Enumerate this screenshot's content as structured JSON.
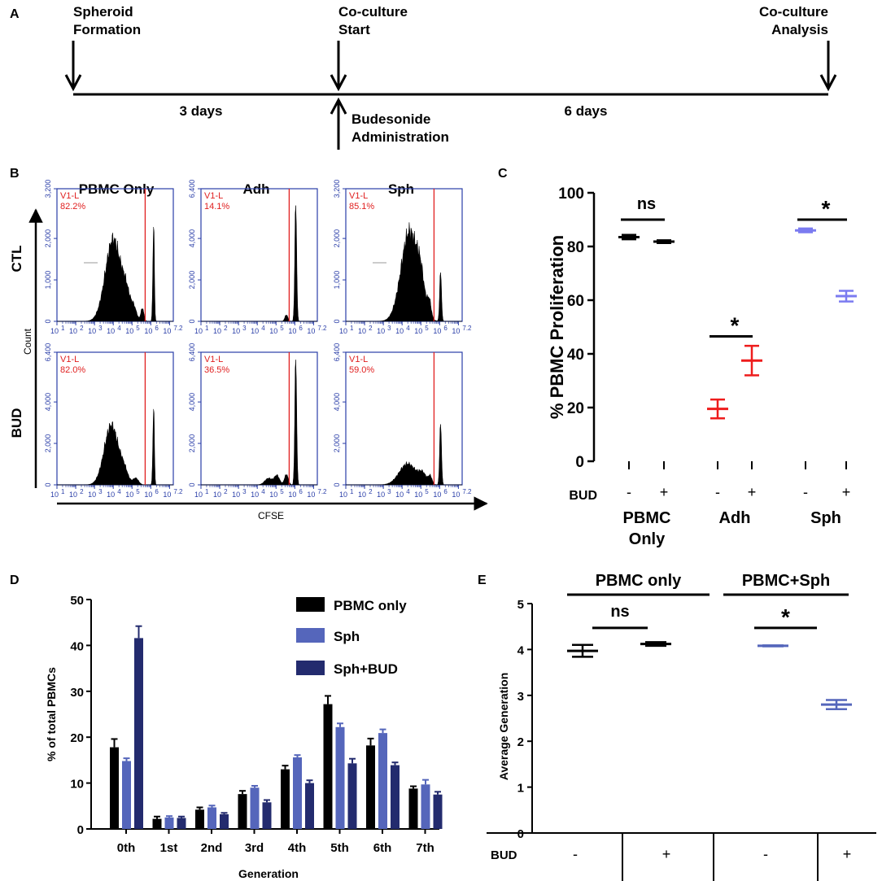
{
  "panel_labels": {
    "a": "A",
    "b": "B",
    "c": "C",
    "d": "D",
    "e": "E"
  },
  "timeline": {
    "events": [
      "Spheroid\nFormation",
      "Co-culture\nStart",
      "Co-culture\nAnalysis"
    ],
    "treatment": "Budesonide\nAdministration",
    "durations": [
      "3 days",
      "6 days"
    ]
  },
  "flow": {
    "columns": [
      "PBMC Only",
      "Adh",
      "Sph"
    ],
    "rows": [
      "CTL",
      "BUD"
    ],
    "y_axis_label": "Count",
    "x_axis_label": "CFSE",
    "gate_label": "V1-L",
    "x_ticks": [
      "10",
      "1",
      "10",
      "2",
      "10",
      "3",
      "10",
      "4",
      "10",
      "5",
      "10",
      "6",
      "10",
      "7.2"
    ],
    "histograms": [
      {
        "row": "CTL",
        "col": "PBMC Only",
        "percent": "82.2%",
        "y_ticks": [
          "3,200",
          "2,000",
          "1,000",
          "0"
        ],
        "ymax": 3200
      },
      {
        "row": "CTL",
        "col": "Adh",
        "percent": "14.1%",
        "y_ticks": [
          "6,400",
          "4,000",
          "2,000",
          "0"
        ],
        "ymax": 6400
      },
      {
        "row": "CTL",
        "col": "Sph",
        "percent": "85.1%",
        "y_ticks": [
          "3,200",
          "2,000",
          "1,000",
          "0"
        ],
        "ymax": 3200
      },
      {
        "row": "BUD",
        "col": "PBMC Only",
        "percent": "82.0%",
        "y_ticks": [
          "6,400",
          "4,000",
          "2,000",
          "0"
        ],
        "ymax": 6400
      },
      {
        "row": "BUD",
        "col": "Adh",
        "percent": "36.5%",
        "y_ticks": [
          "6,400",
          "4,000",
          "2,000",
          "0"
        ],
        "ymax": 6400
      },
      {
        "row": "BUD",
        "col": "Sph",
        "percent": "59.0%",
        "y_ticks": [
          "6,400",
          "4,000",
          "2,000",
          "0"
        ],
        "ymax": 6400
      }
    ],
    "gate_position_log10": 5.7
  },
  "colors": {
    "black": "#000000",
    "red": "#ee1c1c",
    "light_blue": "#7b7bf0",
    "mid_blue": "#5566bb",
    "dark_blue": "#232b6e",
    "flow_axis": "#2a3ea8",
    "gate": "#e02020"
  },
  "chart_data": [
    {
      "id": "C",
      "type": "scatter",
      "ylabel": "% PBMC Proliferation",
      "ylim": [
        0,
        100
      ],
      "yticks": [
        "0",
        "20",
        "40",
        "60",
        "80",
        "100"
      ],
      "xrow_label": "BUD",
      "bud_signs": [
        "-",
        "+",
        "-",
        "+",
        "-",
        "+"
      ],
      "groups": [
        "PBMC\nOnly",
        "Adh",
        "Sph"
      ],
      "points": [
        {
          "group": "PBMC Only",
          "bud": "-",
          "mean": 83.5,
          "err": 0.8,
          "color": "#000000"
        },
        {
          "group": "PBMC Only",
          "bud": "+",
          "mean": 81.8,
          "err": 0.5,
          "color": "#000000"
        },
        {
          "group": "Adh",
          "bud": "-",
          "mean": 19.5,
          "err": 3.5,
          "color": "#ee1c1c"
        },
        {
          "group": "Adh",
          "bud": "+",
          "mean": 37.5,
          "err": 5.5,
          "color": "#ee1c1c"
        },
        {
          "group": "Sph",
          "bud": "-",
          "mean": 86.0,
          "err": 0.7,
          "color": "#7b7bf0"
        },
        {
          "group": "Sph",
          "bud": "+",
          "mean": 61.5,
          "err": 2.0,
          "color": "#7b7bf0"
        }
      ],
      "significance": [
        {
          "between": [
            0,
            1
          ],
          "y": 90,
          "label": "ns"
        },
        {
          "between": [
            2,
            3
          ],
          "y": 46.5,
          "label": "*"
        },
        {
          "between": [
            4,
            5
          ],
          "y": 90,
          "label": "*"
        }
      ]
    },
    {
      "id": "D",
      "type": "bar",
      "xlabel": "Generation",
      "ylabel": "% of total PBMCs",
      "ylim": [
        0,
        50
      ],
      "yticks": [
        "0",
        "10",
        "20",
        "30",
        "40",
        "50"
      ],
      "categories": [
        "0th",
        "1st",
        "2nd",
        "3rd",
        "4th",
        "5th",
        "6th",
        "7th"
      ],
      "series": [
        {
          "name": "PBMC only",
          "color": "#000000",
          "values": [
            17.8,
            2.2,
            4.2,
            7.6,
            13.0,
            27.2,
            18.2,
            8.8
          ],
          "errors": [
            1.8,
            0.5,
            0.5,
            0.7,
            0.8,
            1.8,
            1.5,
            0.5
          ]
        },
        {
          "name": "Sph",
          "color": "#5566bb",
          "values": [
            14.8,
            2.5,
            4.7,
            9.0,
            15.6,
            22.2,
            20.9,
            9.7
          ],
          "errors": [
            0.6,
            0.3,
            0.4,
            0.4,
            0.5,
            0.8,
            0.8,
            1.0
          ]
        },
        {
          "name": "Sph+BUD",
          "color": "#232b6e",
          "values": [
            41.6,
            2.4,
            3.2,
            5.8,
            10.0,
            14.3,
            13.9,
            7.5
          ],
          "errors": [
            2.6,
            0.3,
            0.3,
            0.5,
            0.6,
            1.0,
            0.6,
            0.6
          ]
        }
      ],
      "legend": "top-right"
    },
    {
      "id": "E",
      "type": "scatter",
      "ylabel": "Average Generation",
      "ylim": [
        0,
        5
      ],
      "yticks": [
        "0",
        "1",
        "2",
        "3",
        "4",
        "5"
      ],
      "xrow_label": "BUD",
      "bud_signs": [
        "-",
        "+",
        "-",
        "+"
      ],
      "groups": [
        "PBMC only",
        "PBMC+Sph"
      ],
      "points": [
        {
          "group": "PBMC only",
          "bud": "-",
          "mean": 3.97,
          "err": 0.13,
          "color": "#000000"
        },
        {
          "group": "PBMC only",
          "bud": "+",
          "mean": 4.12,
          "err": 0.04,
          "color": "#000000"
        },
        {
          "group": "PBMC+Sph",
          "bud": "-",
          "mean": 4.08,
          "err": 0.01,
          "color": "#5566bb"
        },
        {
          "group": "PBMC+Sph",
          "bud": "+",
          "mean": 2.8,
          "err": 0.1,
          "color": "#5566bb"
        }
      ],
      "significance": [
        {
          "between": [
            0,
            1
          ],
          "y": 4.47,
          "label": "ns"
        },
        {
          "between": [
            2,
            3
          ],
          "y": 4.47,
          "label": "*"
        }
      ]
    }
  ]
}
